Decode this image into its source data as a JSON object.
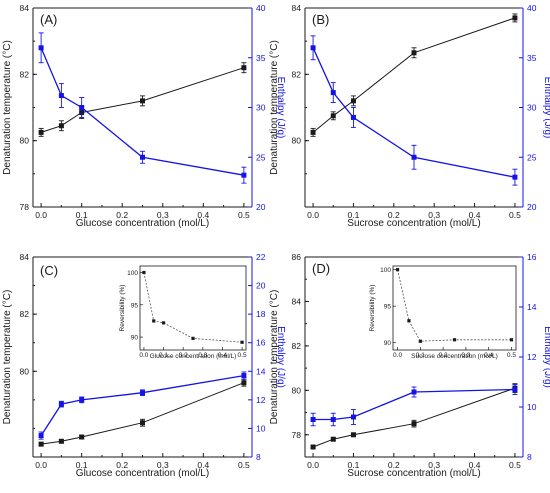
{
  "colors": {
    "black": "#1a1a1a",
    "blue": "#1414e6",
    "gray": "#555555"
  },
  "chart_data": [
    {
      "panel": "(A)",
      "type": "line",
      "xlabel": "Glucose concentration (mol/L)",
      "ylabel_left": "Denaturation temperature (°C)",
      "ylabel_right": "Enthalpy (J/g)",
      "xlim": [
        -0.02,
        0.52
      ],
      "xticks": [
        "0.0",
        "0.1",
        "0.2",
        "0.3",
        "0.4",
        "0.5"
      ],
      "xtick_values": [
        0,
        0.1,
        0.2,
        0.3,
        0.4,
        0.5
      ],
      "ylim_left": [
        78,
        84
      ],
      "yticks_left": [
        "78",
        "80",
        "82",
        "84"
      ],
      "ylim_right": [
        20,
        40
      ],
      "yticks_right": [
        "20",
        "25",
        "30",
        "35",
        "40"
      ],
      "grid": false,
      "series": [
        {
          "axis": "left",
          "color": "black",
          "marker": "square",
          "x": [
            0,
            0.05,
            0.1,
            0.25,
            0.5
          ],
          "y": [
            80.25,
            80.45,
            80.85,
            81.2,
            82.2
          ],
          "err": [
            0.12,
            0.15,
            0.18,
            0.15,
            0.15
          ]
        },
        {
          "axis": "right",
          "color": "blue",
          "marker": "square",
          "x": [
            0,
            0.05,
            0.1,
            0.25,
            0.5
          ],
          "y": [
            36.0,
            31.2,
            30.0,
            25.0,
            23.2
          ],
          "err": [
            1.5,
            1.2,
            1.0,
            0.6,
            0.8
          ]
        }
      ]
    },
    {
      "panel": "(B)",
      "type": "line",
      "xlabel": "Sucrose concentration (mol/L)",
      "ylabel_left": "Denaturation temperature (°C)",
      "ylabel_right": "Enthalpy (J/g)",
      "xlim": [
        -0.02,
        0.52
      ],
      "xticks": [
        "0.0",
        "0.1",
        "0.2",
        "0.3",
        "0.4",
        "0.5"
      ],
      "xtick_values": [
        0,
        0.1,
        0.2,
        0.3,
        0.4,
        0.5
      ],
      "ylim_left": [
        78,
        84
      ],
      "yticks_left": [
        "80",
        "82",
        "84"
      ],
      "ylim_right": [
        20,
        40
      ],
      "yticks_right": [
        "20",
        "25",
        "30",
        "35",
        "40"
      ],
      "grid": false,
      "series": [
        {
          "axis": "left",
          "color": "black",
          "marker": "square",
          "x": [
            0,
            0.05,
            0.1,
            0.25,
            0.5
          ],
          "y": [
            80.25,
            80.75,
            81.2,
            82.65,
            83.7
          ],
          "err": [
            0.12,
            0.12,
            0.15,
            0.15,
            0.12
          ]
        },
        {
          "axis": "right",
          "color": "blue",
          "marker": "square",
          "x": [
            0,
            0.05,
            0.1,
            0.25,
            0.5
          ],
          "y": [
            36.0,
            31.5,
            29.0,
            25.0,
            23.0
          ],
          "err": [
            1.2,
            1.0,
            1.0,
            1.2,
            0.8
          ]
        }
      ]
    },
    {
      "panel": "(C)",
      "type": "line",
      "xlabel": "Glucose concentration (mol/L)",
      "ylabel_left": "Denaturation temperature (°C)",
      "ylabel_right": "Enthalpy (J/g)",
      "xlim": [
        -0.02,
        0.52
      ],
      "xticks": [
        "0.0",
        "0.1",
        "0.2",
        "0.3",
        "0.4",
        "0.5"
      ],
      "xtick_values": [
        0,
        0.1,
        0.2,
        0.3,
        0.4,
        0.5
      ],
      "ylim_left": [
        77,
        84
      ],
      "yticks_left": [
        "80",
        "82",
        "84"
      ],
      "ylim_right": [
        8,
        22
      ],
      "yticks_right": [
        "8",
        "10",
        "12",
        "14",
        "16",
        "18",
        "20",
        "22"
      ],
      "grid": false,
      "series": [
        {
          "axis": "left",
          "color": "black",
          "marker": "square",
          "x": [
            0,
            0.05,
            0.1,
            0.25,
            0.5
          ],
          "y": [
            77.45,
            77.55,
            77.7,
            78.2,
            79.6
          ],
          "err": [
            0.05,
            0.05,
            0.06,
            0.12,
            0.12
          ]
        },
        {
          "axis": "right",
          "color": "blue",
          "marker": "square",
          "x": [
            0,
            0.05,
            0.1,
            0.25,
            0.5
          ],
          "y": [
            9.5,
            11.7,
            12.0,
            12.5,
            13.7
          ],
          "err": [
            0.25,
            0.2,
            0.2,
            0.2,
            0.25
          ]
        }
      ],
      "inset": {
        "type": "line",
        "xlabel": "Glucose concentration (mol/L)",
        "ylabel": "Reversibility (%)",
        "xlim": [
          -0.02,
          0.52
        ],
        "xticks": [
          "0.0",
          "0.1",
          "0.2",
          "0.3",
          "0.4",
          "0.5"
        ],
        "xtick_values": [
          0,
          0.1,
          0.2,
          0.3,
          0.4,
          0.5
        ],
        "ylim": [
          88,
          101
        ],
        "yticks": [
          "90",
          "95",
          "100"
        ],
        "ytick_values": [
          90,
          95,
          100
        ],
        "x": [
          0,
          0.05,
          0.1,
          0.25,
          0.5
        ],
        "y": [
          100,
          92.5,
          92.2,
          89.8,
          89.2
        ]
      }
    },
    {
      "panel": "(D)",
      "type": "line",
      "xlabel": "Sucrose concentration (mol/L)",
      "ylabel_left": "Denaturation temperature (°C)",
      "ylabel_right": "Enthalpy (J/g)",
      "xlim": [
        -0.02,
        0.52
      ],
      "xticks": [
        "0.0",
        "0.1",
        "0.2",
        "0.3",
        "0.4",
        "0.5"
      ],
      "xtick_values": [
        0,
        0.1,
        0.2,
        0.3,
        0.4,
        0.5
      ],
      "ylim_left": [
        77,
        86
      ],
      "yticks_left": [
        "78",
        "80",
        "82",
        "84",
        "86"
      ],
      "ylim_right": [
        8,
        16
      ],
      "yticks_right": [
        "8",
        "10",
        "12",
        "14",
        "16"
      ],
      "grid": false,
      "series": [
        {
          "axis": "left",
          "color": "black",
          "marker": "square",
          "x": [
            0,
            0.05,
            0.1,
            0.25,
            0.5
          ],
          "y": [
            77.45,
            77.8,
            78.0,
            78.5,
            80.1
          ],
          "err": [
            0.05,
            0.06,
            0.08,
            0.15,
            0.2
          ]
        },
        {
          "axis": "right",
          "color": "blue",
          "marker": "square",
          "x": [
            0,
            0.05,
            0.1,
            0.25,
            0.5
          ],
          "y": [
            9.5,
            9.5,
            9.6,
            10.6,
            10.7
          ],
          "err": [
            0.25,
            0.25,
            0.3,
            0.2,
            0.2
          ]
        }
      ],
      "inset": {
        "type": "line",
        "xlabel": "Sucrose concentration (mol/L)",
        "ylabel": "Reversibility (%)",
        "xlim": [
          -0.02,
          0.52
        ],
        "xticks": [
          "0.0",
          "0.1",
          "0.2",
          "0.3",
          "0.4",
          "0.5"
        ],
        "xtick_values": [
          0,
          0.1,
          0.2,
          0.3,
          0.4,
          0.5
        ],
        "ylim": [
          89,
          100.5
        ],
        "yticks": [
          "90",
          "95",
          "100"
        ],
        "ytick_values": [
          90,
          95,
          100
        ],
        "x": [
          0,
          0.05,
          0.1,
          0.25,
          0.5
        ],
        "y": [
          100,
          93,
          90.2,
          90.4,
          90.4
        ]
      }
    }
  ]
}
